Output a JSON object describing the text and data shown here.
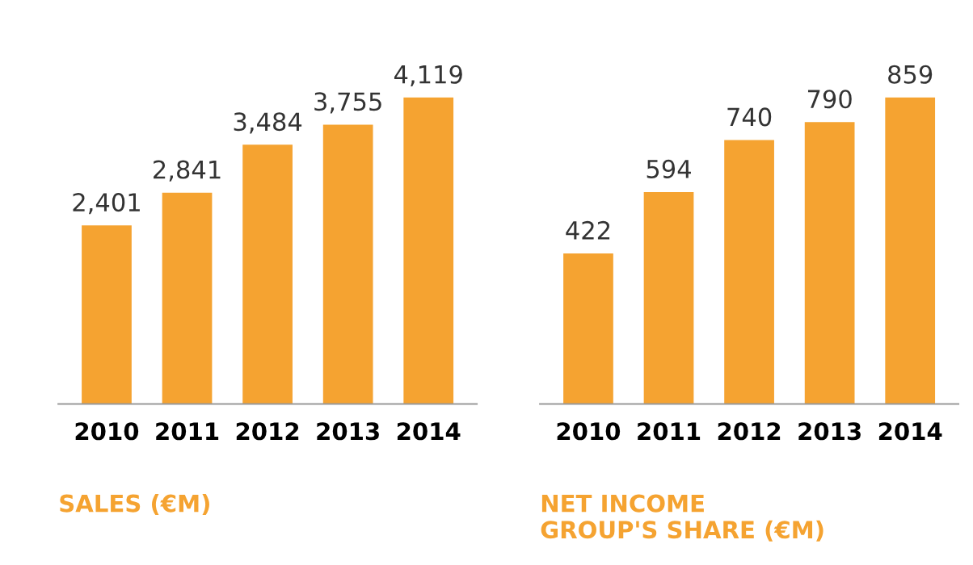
{
  "chart_data": [
    {
      "type": "bar",
      "xlabel": "SALES (€M)",
      "categories": [
        "2010",
        "2011",
        "2012",
        "2013",
        "2014"
      ],
      "values": [
        2401,
        2841,
        3484,
        3755,
        4119
      ],
      "value_labels": [
        "2,401",
        "2,841",
        "3,484",
        "3,755",
        "4,119"
      ],
      "color": "#f5a331",
      "tick_labels": "x",
      "grid": false
    },
    {
      "type": "bar",
      "xlabel": "NET INCOME\nGROUP'S SHARE (€M)",
      "categories": [
        "2010",
        "2011",
        "2012",
        "2013",
        "2014"
      ],
      "values": [
        422,
        594,
        740,
        790,
        859
      ],
      "color": "#f5a331",
      "data_labels": true,
      "tick_labels": "x",
      "grid": false
    }
  ]
}
